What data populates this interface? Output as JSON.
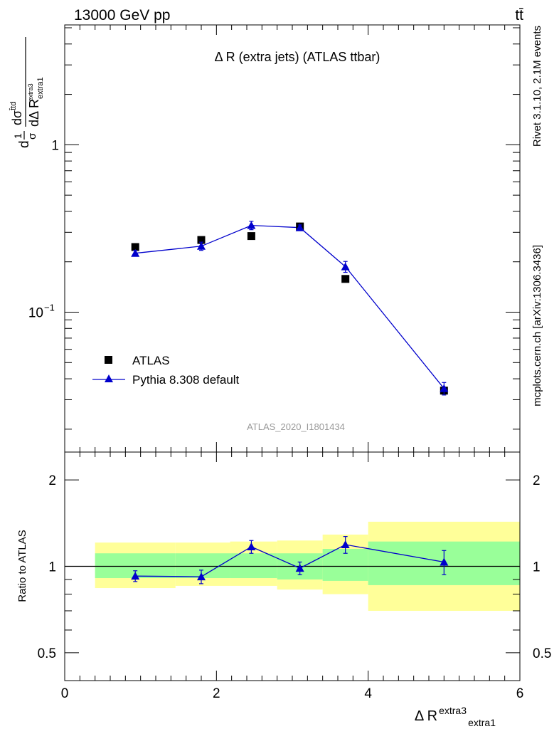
{
  "header": {
    "left": "13000 GeV pp",
    "right": "tt̄"
  },
  "side_labels": {
    "rivet": "Rivet 3.1.10,  2.1M events",
    "mcplots": "mcplots.cern.ch [arXiv:1306.3436]"
  },
  "colors": {
    "data": "#000000",
    "mc": "#0000cc",
    "band_outer": "#ffff99",
    "band_inner": "#99ff99",
    "watermark": "#999999",
    "side_text": "#808080"
  },
  "chart_data": [
    {
      "type": "scatter",
      "panel": "main",
      "title": "Δ R (extra jets) (ATLAS ttbar)",
      "watermark": "ATLAS_2020_I1801434",
      "ylabel": {
        "prefix": "d",
        "sigma": "σ",
        "frac_top": "dσ",
        "frac_top_sup": "t̄td",
        "frac_bottom": "dΔ R",
        "frac_bottom_sup": "extra3",
        "frac_bottom_sub": "extra1"
      },
      "y_scale": "log",
      "xlim": [
        0,
        6
      ],
      "ylim": [
        0.0146,
        5.2
      ],
      "y_ticks": [
        {
          "value": 0.1,
          "label": "10",
          "exp": "−1"
        },
        {
          "value": 1,
          "label": "1",
          "exp": ""
        }
      ],
      "legend": {
        "placement": "bottom-left",
        "entries": [
          "ATLAS",
          "Pythia 8.308 default"
        ]
      },
      "series": [
        {
          "name": "ATLAS",
          "marker": "square",
          "x": [
            0.93,
            1.8,
            2.46,
            3.1,
            3.7,
            5.0
          ],
          "y": [
            0.245,
            0.27,
            0.285,
            0.325,
            0.158,
            0.034
          ]
        },
        {
          "name": "Pythia 8.308 default",
          "marker": "triangle",
          "line": true,
          "x": [
            0.93,
            1.8,
            2.46,
            3.1,
            3.7,
            5.0
          ],
          "y": [
            0.225,
            0.248,
            0.33,
            0.32,
            0.187,
            0.035
          ],
          "yerr": [
            0.009,
            0.014,
            0.019,
            0.012,
            0.014,
            0.003
          ]
        }
      ]
    },
    {
      "type": "scatter",
      "panel": "ratio",
      "ylabel": "Ratio to ATLAS",
      "xlabel": {
        "base": "Δ R",
        "sup": "extra3",
        "sub": "extra1"
      },
      "y_scale": "log",
      "xlim": [
        0,
        6
      ],
      "ylim": [
        0.4,
        2.5
      ],
      "x_ticks": [
        "0",
        "2",
        "4",
        "6"
      ],
      "y_ticks": [
        {
          "value": 0.5,
          "label": "0.5"
        },
        {
          "value": 1,
          "label": "1"
        },
        {
          "value": 2,
          "label": "2"
        }
      ],
      "reference_line": 1,
      "bands": [
        {
          "x0": 0.4,
          "x1": 1.46,
          "outer": [
            0.84,
            1.21
          ],
          "inner": [
            0.91,
            1.11
          ]
        },
        {
          "x0": 1.46,
          "x1": 2.18,
          "outer": [
            0.855,
            1.21
          ],
          "inner": [
            0.91,
            1.11
          ]
        },
        {
          "x0": 2.18,
          "x1": 2.8,
          "outer": [
            0.855,
            1.22
          ],
          "inner": [
            0.91,
            1.11
          ]
        },
        {
          "x0": 2.8,
          "x1": 3.4,
          "outer": [
            0.83,
            1.23
          ],
          "inner": [
            0.9,
            1.11
          ]
        },
        {
          "x0": 3.4,
          "x1": 4.0,
          "outer": [
            0.8,
            1.29
          ],
          "inner": [
            0.89,
            1.15
          ]
        },
        {
          "x0": 4.0,
          "x1": 6.0,
          "outer": [
            0.7,
            1.43
          ],
          "inner": [
            0.86,
            1.22
          ]
        }
      ],
      "series": [
        {
          "name": "Pythia 8.308 default",
          "marker": "triangle",
          "line": true,
          "x": [
            0.93,
            1.8,
            2.46,
            3.1,
            3.7,
            5.0
          ],
          "y": [
            0.925,
            0.92,
            1.17,
            0.985,
            1.19,
            1.035
          ],
          "yerr": [
            0.04,
            0.05,
            0.06,
            0.05,
            0.08,
            0.1
          ]
        }
      ]
    }
  ]
}
